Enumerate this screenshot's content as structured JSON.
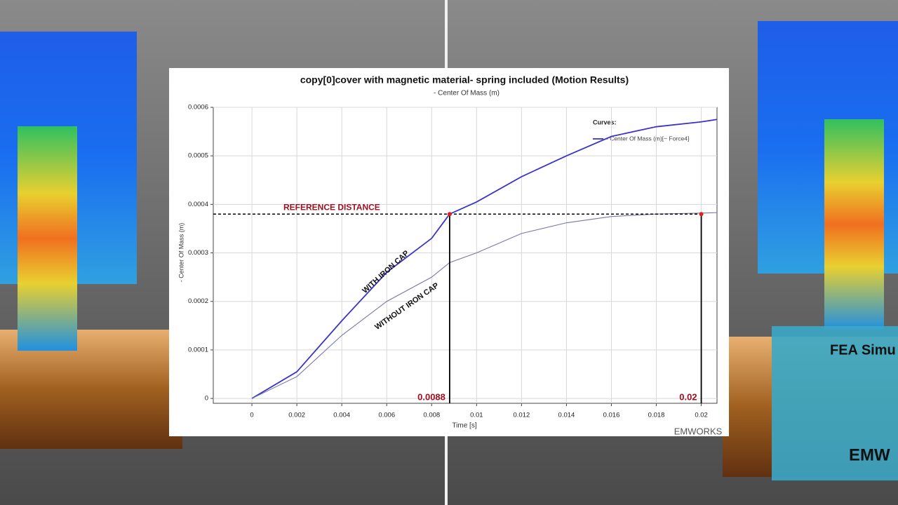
{
  "chart_data": {
    "type": "line",
    "title": "copy[0]cover with  magnetic material- spring included (Motion Results)",
    "subtitle": "- Center Of Mass (m)",
    "x_label": "Time [s]",
    "y_label": "- Center Of Mass (m)",
    "legend_title": "Curves:",
    "legend_entry": "- Center Of Mass (m)[~ Force4]",
    "legend_position": "upper right",
    "grid": true,
    "x": [
      0,
      0.002,
      0.004,
      0.006,
      0.008,
      0.0088,
      0.01,
      0.012,
      0.014,
      0.016,
      0.018,
      0.02,
      0.0207
    ],
    "series": [
      {
        "name": "WITH IRON CAP",
        "color": "#3a35c8",
        "values": [
          0,
          5.5e-05,
          0.00016,
          0.00026,
          0.00033,
          0.00038,
          0.000405,
          0.000457,
          0.0005,
          0.00054,
          0.00056,
          0.00057,
          0.000575
        ]
      },
      {
        "name": "WITHOUT IRON CAP",
        "color": "#7777aa",
        "values": [
          0,
          4.5e-05,
          0.00013,
          0.0002,
          0.00025,
          0.00028,
          0.0003,
          0.00034,
          0.000362,
          0.000375,
          0.00038,
          0.000382,
          0.000383
        ]
      }
    ],
    "xlim": [
      -0.00172,
      0.0207
    ],
    "ylim": [
      -1e-05,
      0.0006
    ],
    "xticks": [
      0,
      0.002,
      0.004,
      0.006,
      0.008,
      0.01,
      0.012,
      0.014,
      0.016,
      0.018,
      0.02
    ],
    "yticks": [
      0,
      0.0001,
      0.0002,
      0.0003,
      0.0004,
      0.0005,
      0.0006
    ],
    "reference": {
      "label": "REFERENCE DISTANCE",
      "value": 0.00038,
      "color": "#a01020"
    },
    "markers": [
      {
        "label": "0.0088",
        "x": 0.0088
      },
      {
        "label": "0.02",
        "x": 0.02
      }
    ]
  },
  "overlay": {
    "watermark": "EMWORKS",
    "banner_line1": "FEA Simu",
    "banner_line2": "EMW"
  }
}
